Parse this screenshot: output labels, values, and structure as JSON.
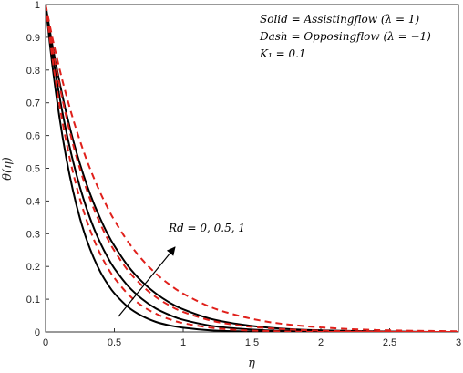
{
  "chart_data": {
    "type": "line",
    "title": "",
    "xlabel": "η",
    "ylabel": "θ(η)",
    "xlim": [
      0,
      3
    ],
    "ylim": [
      0,
      1
    ],
    "xticks": [
      "0",
      "0.5",
      "1",
      "1.5",
      "2",
      "2.5",
      "3"
    ],
    "yticks": [
      "0",
      "0.1",
      "0.2",
      "0.3",
      "0.4",
      "0.5",
      "0.6",
      "0.7",
      "0.8",
      "0.9",
      "1"
    ],
    "grid": false,
    "legend_position": "top-right",
    "legend": [
      "Solid = Assistingflow (λ = 1)",
      "Dash = Opposingflow (λ = −1)",
      "K₁ = 0.1"
    ],
    "annotation": "Rd = 0, 0.5, 1",
    "x": [
      0,
      0.05,
      0.1,
      0.15,
      0.2,
      0.25,
      0.3,
      0.35,
      0.4,
      0.45,
      0.5,
      0.6,
      0.7,
      0.8,
      0.9,
      1.0,
      1.2,
      1.4,
      1.6,
      1.8,
      2.0,
      2.2,
      2.4,
      2.6,
      2.8,
      3.0
    ],
    "series": [
      {
        "style": "solid",
        "color": "#000000",
        "values": [
          1.0,
          0.812,
          0.658,
          0.532,
          0.43,
          0.347,
          0.28,
          0.226,
          0.182,
          0.147,
          0.118,
          0.076,
          0.049,
          0.031,
          0.02,
          0.013,
          0.005,
          0.002,
          0.001,
          0.0,
          0.0,
          0.0,
          0.0,
          0.0,
          0.0,
          0.0
        ]
      },
      {
        "style": "solid",
        "color": "#000000",
        "values": [
          1.0,
          0.85,
          0.722,
          0.613,
          0.521,
          0.442,
          0.375,
          0.318,
          0.27,
          0.229,
          0.194,
          0.14,
          0.101,
          0.072,
          0.052,
          0.037,
          0.019,
          0.01,
          0.005,
          0.003,
          0.001,
          0.0,
          0.0,
          0.0,
          0.0,
          0.0
        ]
      },
      {
        "style": "solid",
        "color": "#000000",
        "values": [
          1.0,
          0.875,
          0.766,
          0.67,
          0.586,
          0.513,
          0.449,
          0.393,
          0.344,
          0.3,
          0.263,
          0.201,
          0.154,
          0.118,
          0.09,
          0.069,
          0.04,
          0.024,
          0.014,
          0.008,
          0.005,
          0.003,
          0.002,
          0.001,
          0.0,
          0.0
        ]
      },
      {
        "style": "dashed",
        "color": "#e0201b",
        "values": [
          1.0,
          0.835,
          0.697,
          0.582,
          0.486,
          0.406,
          0.339,
          0.283,
          0.236,
          0.197,
          0.165,
          0.115,
          0.08,
          0.056,
          0.039,
          0.027,
          0.013,
          0.006,
          0.003,
          0.001,
          0.0,
          0.0,
          0.0,
          0.0,
          0.0,
          0.0
        ]
      },
      {
        "style": "dashed",
        "color": "#e0201b",
        "values": [
          1.0,
          0.87,
          0.757,
          0.658,
          0.572,
          0.498,
          0.433,
          0.377,
          0.328,
          0.285,
          0.248,
          0.187,
          0.142,
          0.107,
          0.081,
          0.061,
          0.035,
          0.02,
          0.012,
          0.007,
          0.004,
          0.002,
          0.001,
          0.0,
          0.0,
          0.0
        ]
      },
      {
        "style": "dashed",
        "color": "#e0201b",
        "values": [
          1.0,
          0.898,
          0.806,
          0.724,
          0.65,
          0.584,
          0.524,
          0.471,
          0.423,
          0.38,
          0.341,
          0.275,
          0.222,
          0.179,
          0.145,
          0.117,
          0.076,
          0.05,
          0.032,
          0.021,
          0.014,
          0.009,
          0.006,
          0.004,
          0.003,
          0.002
        ]
      }
    ]
  }
}
